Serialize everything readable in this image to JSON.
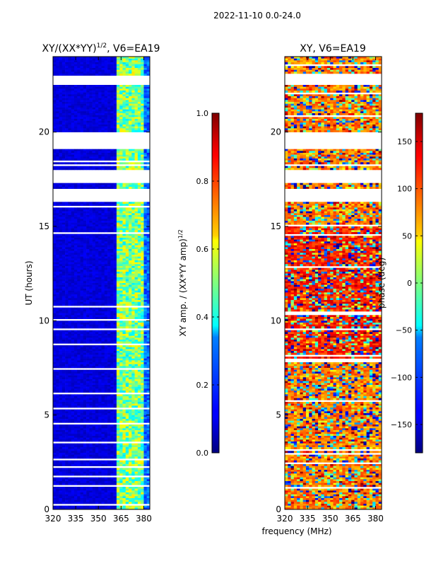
{
  "suptitle": "2022-11-10 0.0-24.0",
  "shared_xlabel": "frequency (MHz)",
  "chart_data": [
    {
      "type": "heatmap",
      "title_main": "XY/(XX*YY)",
      "title_exp": "1/2",
      "title_suffix": ", V6=EA19",
      "xlabel": "frequency (MHz)",
      "ylabel": "UT (hours)",
      "xlim": [
        320,
        384
      ],
      "ylim": [
        0,
        24
      ],
      "xticks": [
        320,
        335,
        350,
        365,
        380
      ],
      "yticks": [
        0,
        5,
        10,
        15,
        20
      ],
      "colorbar": {
        "label_main": "XY amp. / (XX*YY amp)",
        "label_exp": "1/2",
        "range": [
          0.0,
          1.0
        ],
        "ticks": [
          "0.0",
          "0.2",
          "0.4",
          "0.6",
          "0.8",
          "1.0"
        ],
        "tick_values": [
          0.0,
          0.2,
          0.4,
          0.6,
          0.8,
          1.0
        ],
        "colormap": "jet"
      },
      "blank_time_ranges": [
        [
          16.3,
          17.0
        ],
        [
          17.3,
          18.0
        ],
        [
          19.1,
          20.0
        ],
        [
          22.5,
          23.0
        ]
      ],
      "strong_frequency_bands": [
        [
          363,
          367
        ],
        [
          368,
          371
        ],
        [
          373,
          375
        ],
        [
          376,
          380
        ]
      ]
    },
    {
      "type": "heatmap",
      "title": "XY, V6=EA19",
      "xlabel": "frequency (MHz)",
      "ylabel": "",
      "xlim": [
        320,
        384
      ],
      "ylim": [
        0,
        24
      ],
      "xticks": [
        320,
        335,
        350,
        365,
        380
      ],
      "yticks": [
        0,
        5,
        10,
        15,
        20
      ],
      "colorbar": {
        "label": "phase (deg)",
        "range": [
          -180,
          180
        ],
        "ticks": [
          "−150",
          "−100",
          "−50",
          "0",
          "50",
          "100",
          "150"
        ],
        "tick_values": [
          -150,
          -100,
          -50,
          0,
          50,
          100,
          150
        ],
        "colormap": "jet"
      },
      "blank_time_ranges": [
        [
          16.3,
          17.0
        ],
        [
          17.3,
          18.0
        ],
        [
          19.1,
          20.0
        ],
        [
          22.5,
          23.0
        ]
      ]
    }
  ]
}
